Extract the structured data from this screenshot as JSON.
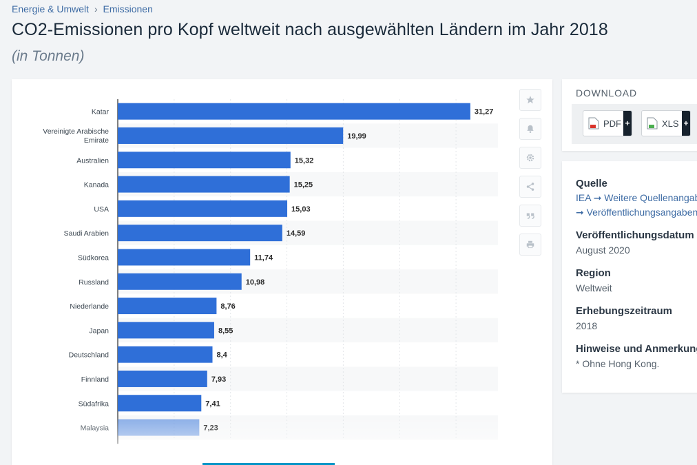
{
  "breadcrumb": {
    "items": [
      "Energie & Umwelt",
      "Emissionen"
    ],
    "separator": "›"
  },
  "title": "CO2-Emissionen pro Kopf weltweit nach ausgewählten Ländern im Jahr 2018",
  "subtitle": "(in Tonnen)",
  "colors": {
    "bar": "#2f6fd8",
    "accent_link": "#3d6ba4",
    "title": "#1a2a3a",
    "download_plus": "#17222d"
  },
  "actions": [
    "star-icon",
    "bell-icon",
    "gear-icon",
    "share-icon",
    "quote-icon",
    "print-icon"
  ],
  "chart_data": {
    "type": "bar",
    "orientation": "horizontal",
    "categories": [
      "Katar",
      "Vereinigte Arabische Emirate",
      "Australien",
      "Kanada",
      "USA",
      "Saudi Arabien",
      "Südkorea",
      "Russland",
      "Niederlande",
      "Japan",
      "Deutschland",
      "Finnland",
      "Südafrika",
      "Malaysia"
    ],
    "category_lines": [
      [
        "Katar"
      ],
      [
        "Vereinigte Arabische",
        "Emirate"
      ],
      [
        "Australien"
      ],
      [
        "Kanada"
      ],
      [
        "USA"
      ],
      [
        "Saudi Arabien"
      ],
      [
        "Südkorea"
      ],
      [
        "Russland"
      ],
      [
        "Niederlande"
      ],
      [
        "Japan"
      ],
      [
        "Deutschland"
      ],
      [
        "Finnland"
      ],
      [
        "Südafrika"
      ],
      [
        "Malaysia"
      ]
    ],
    "values": [
      31.27,
      19.99,
      15.32,
      15.25,
      15.03,
      14.59,
      11.74,
      10.98,
      8.76,
      8.55,
      8.4,
      7.93,
      7.41,
      7.23
    ],
    "value_labels": [
      "31,27",
      "19,99",
      "15,32",
      "15,25",
      "15,03",
      "14,59",
      "11,74",
      "10,98",
      "8,76",
      "8,55",
      "8,4",
      "7,93",
      "7,41",
      "7,23"
    ],
    "xlim": [
      0,
      35
    ],
    "grid": true,
    "legend": "none"
  },
  "download": {
    "title": "DOWNLOAD",
    "buttons": [
      {
        "label": "PDF",
        "icon": "pdf-file-icon",
        "plus": "+"
      },
      {
        "label": "XLS",
        "icon": "xls-file-icon",
        "plus": "+"
      }
    ]
  },
  "info": {
    "source": {
      "heading": "Quelle",
      "prefix": "IEA",
      "link1": "➞ Weitere Quellenangaben",
      "link2": "➞ Veröffentlichungsangaben"
    },
    "published": {
      "heading": "Veröffentlichungsdatum",
      "value": "August 2020"
    },
    "region": {
      "heading": "Region",
      "value": "Weltweit"
    },
    "period": {
      "heading": "Erhebungszeitraum",
      "value": "2018"
    },
    "notes": {
      "heading": "Hinweise und Anmerkungen",
      "value": "* Ohne Hong Kong."
    }
  }
}
